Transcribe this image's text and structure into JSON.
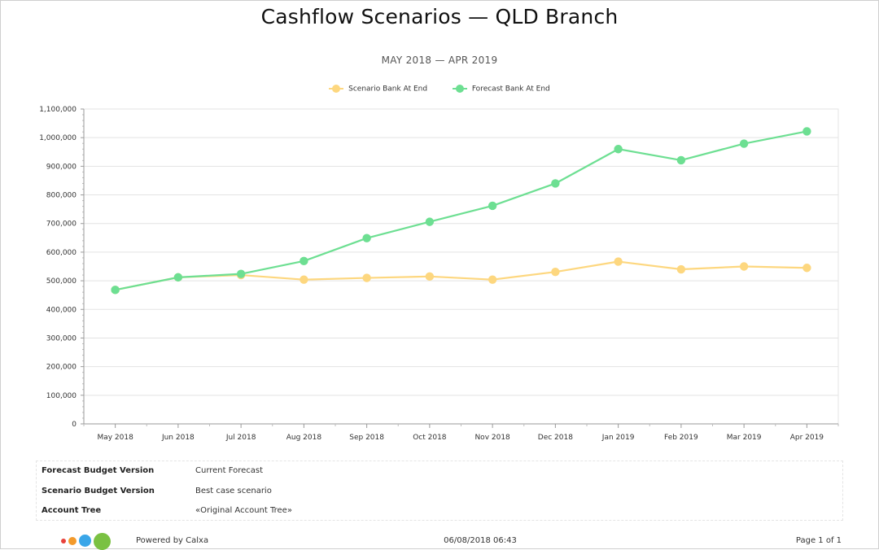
{
  "report": {
    "title": "Cashflow Scenarios — QLD Branch",
    "subtitle": "MAY 2018 — APR 2019"
  },
  "chart_data": {
    "type": "line",
    "title": "",
    "xlabel": "",
    "ylabel": "",
    "categories": [
      "May 2018",
      "Jun 2018",
      "Jul 2018",
      "Aug 2018",
      "Sep 2018",
      "Oct 2018",
      "Nov 2018",
      "Dec 2018",
      "Jan 2019",
      "Feb 2019",
      "Mar 2019",
      "Apr 2019"
    ],
    "ylim": [
      0,
      1100000
    ],
    "yticks": [
      0,
      100000,
      200000,
      300000,
      400000,
      500000,
      600000,
      700000,
      800000,
      900000,
      1000000,
      1100000
    ],
    "ytick_labels": [
      "0",
      "100,000",
      "200,000",
      "300,000",
      "400,000",
      "500,000",
      "600,000",
      "700,000",
      "800,000",
      "900,000",
      "1,000,000",
      "1,100,000"
    ],
    "grid": true,
    "legend": "top-center",
    "series": [
      {
        "name": "Scenario Bank At End",
        "color": "#fdd77f",
        "values": [
          468000,
          512000,
          520000,
          504000,
          510000,
          515000,
          504000,
          531000,
          567000,
          540000,
          550000,
          545000
        ]
      },
      {
        "name": "Forecast Bank At End",
        "color": "#6ddf92",
        "values": [
          468000,
          512000,
          524000,
          569000,
          649000,
          706000,
          762000,
          840000,
          960000,
          921000,
          979000,
          1022000
        ]
      }
    ]
  },
  "details": [
    {
      "label": "Forecast Budget Version",
      "value": "Current Forecast"
    },
    {
      "label": "Scenario Budget Version",
      "value": "Best case scenario"
    },
    {
      "label": "Account Tree",
      "value": "«Original Account Tree»"
    }
  ],
  "footer": {
    "powered_by": "Powered by Calxa",
    "printed_at": "06/08/2018 06:43",
    "page": "Page 1 of 1",
    "logo_colors": [
      "#e8413b",
      "#f39a2b",
      "#3aa6e8",
      "#7ac142"
    ]
  }
}
